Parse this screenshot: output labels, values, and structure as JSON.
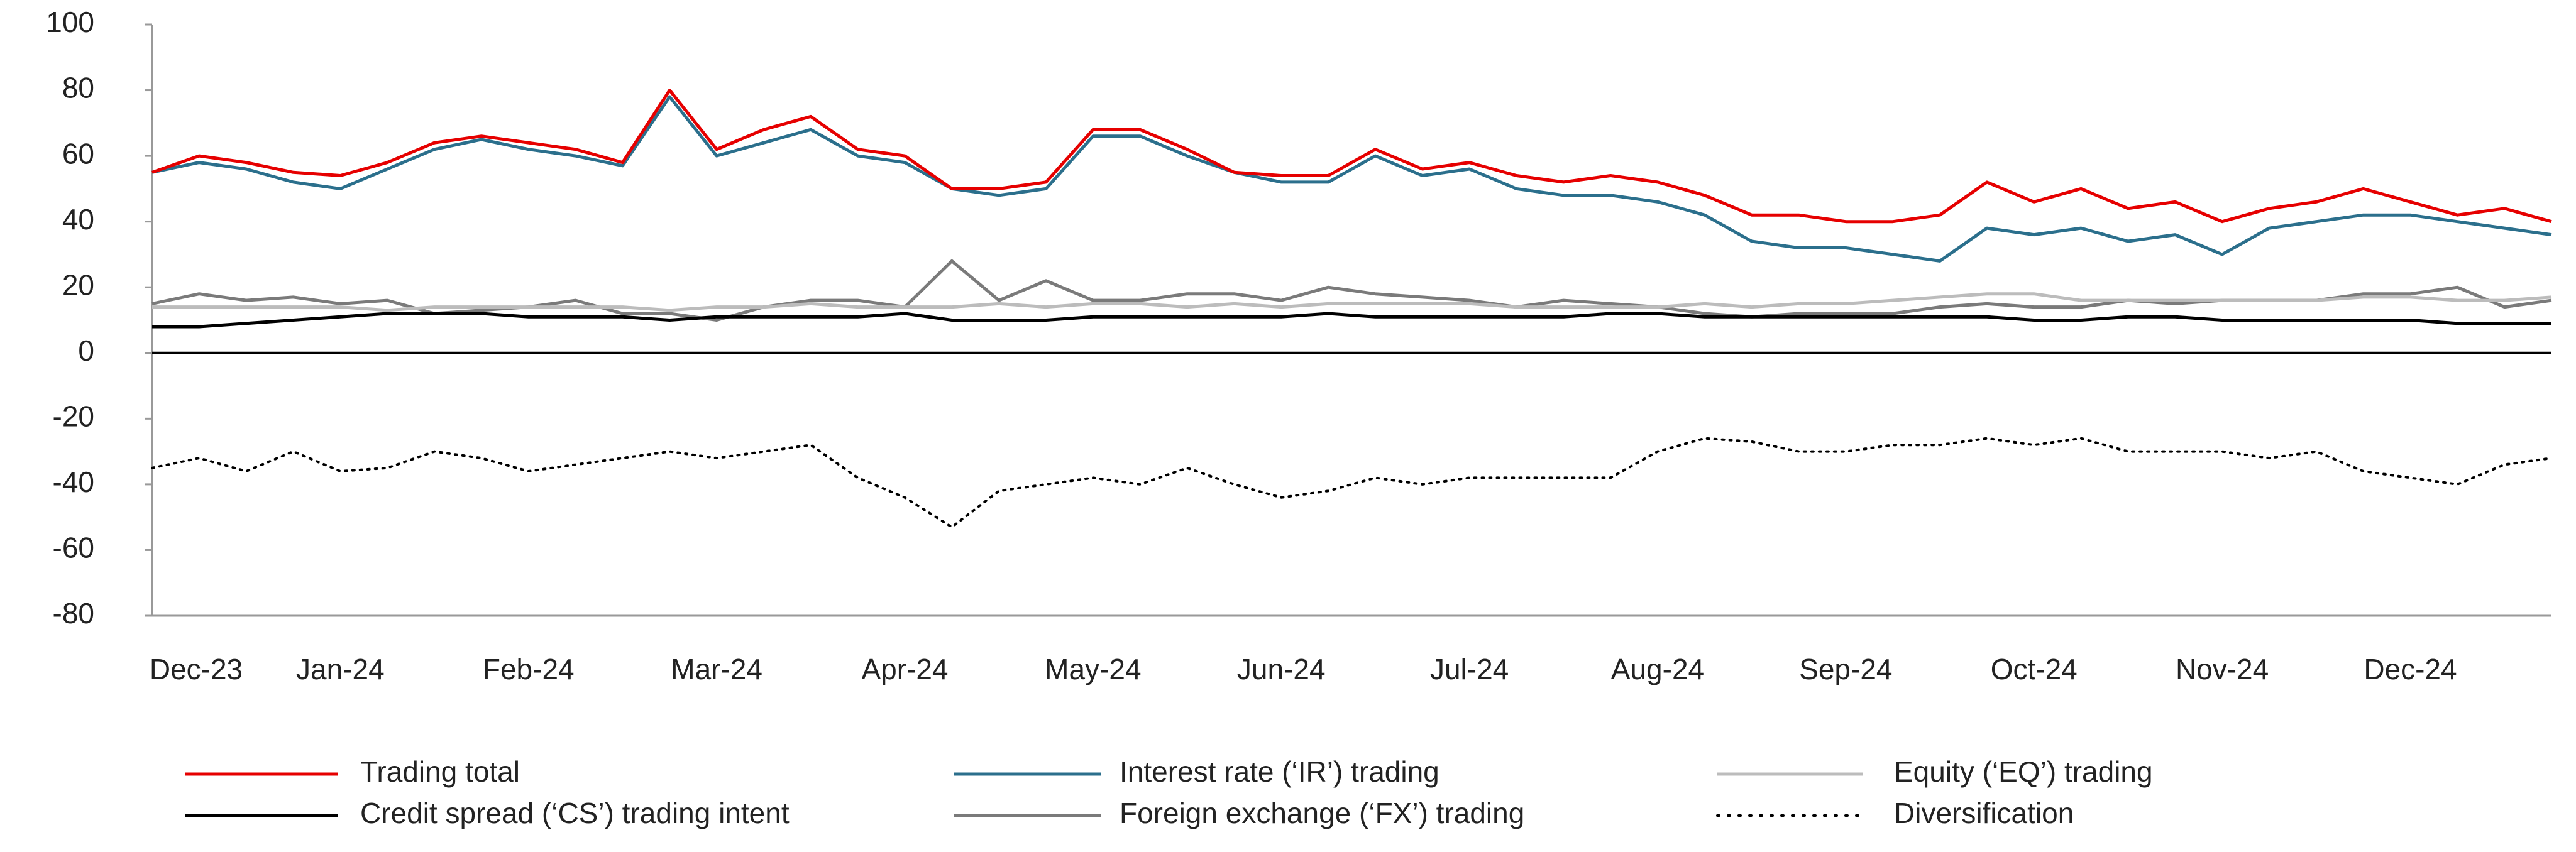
{
  "chart_data": {
    "type": "line",
    "categories": [
      "Dec-23",
      null,
      null,
      null,
      "Jan-24",
      null,
      null,
      null,
      "Feb-24",
      null,
      null,
      null,
      "Mar-24",
      null,
      null,
      null,
      "Apr-24",
      null,
      null,
      null,
      "May-24",
      null,
      null,
      null,
      "Jun-24",
      null,
      null,
      null,
      "Jul-24",
      null,
      null,
      null,
      "Aug-24",
      null,
      null,
      null,
      "Sep-24",
      null,
      null,
      null,
      "Oct-24",
      null,
      null,
      null,
      "Nov-24",
      null,
      null,
      null,
      "Dec-24",
      null,
      null,
      null
    ],
    "ylim": [
      -80,
      100
    ],
    "yticks": [
      -80,
      -60,
      -40,
      -20,
      0,
      20,
      40,
      60,
      80,
      100
    ],
    "series": [
      {
        "name": "Trading total",
        "color": "#e60000",
        "dash": "solid",
        "values": [
          55,
          60,
          58,
          55,
          54,
          58,
          64,
          66,
          64,
          62,
          58,
          80,
          62,
          68,
          72,
          62,
          60,
          50,
          50,
          52,
          68,
          68,
          62,
          55,
          54,
          54,
          62,
          56,
          58,
          54,
          52,
          54,
          52,
          48,
          42,
          42,
          40,
          40,
          42,
          52,
          46,
          50,
          44,
          46,
          40,
          44,
          46,
          50,
          46,
          42,
          44,
          40
        ]
      },
      {
        "name": "Interest rate (‘IR’) trading",
        "color": "#2b6f8c",
        "dash": "solid",
        "values": [
          55,
          58,
          56,
          52,
          50,
          56,
          62,
          65,
          62,
          60,
          57,
          78,
          60,
          64,
          68,
          60,
          58,
          50,
          48,
          50,
          66,
          66,
          60,
          55,
          52,
          52,
          60,
          54,
          56,
          50,
          48,
          48,
          46,
          42,
          34,
          32,
          32,
          30,
          28,
          38,
          36,
          38,
          34,
          36,
          30,
          38,
          40,
          42,
          42,
          40,
          38,
          36
        ]
      },
      {
        "name": "Equity (‘EQ’) trading",
        "color": "#bcbcbc",
        "dash": "solid",
        "values": [
          14,
          14,
          14,
          14,
          14,
          13,
          14,
          14,
          14,
          14,
          14,
          13,
          14,
          14,
          15,
          14,
          14,
          14,
          15,
          14,
          15,
          15,
          14,
          15,
          14,
          15,
          15,
          15,
          15,
          14,
          14,
          14,
          14,
          15,
          14,
          15,
          15,
          16,
          17,
          18,
          18,
          16,
          16,
          16,
          16,
          16,
          16,
          17,
          17,
          16,
          16,
          17
        ]
      },
      {
        "name": "Credit spread (‘CS’) trading intent",
        "color": "#000000",
        "dash": "solid",
        "values": [
          8,
          8,
          9,
          10,
          11,
          12,
          12,
          12,
          11,
          11,
          11,
          10,
          11,
          11,
          11,
          11,
          12,
          10,
          10,
          10,
          11,
          11,
          11,
          11,
          11,
          12,
          11,
          11,
          11,
          11,
          11,
          12,
          12,
          11,
          11,
          11,
          11,
          11,
          11,
          11,
          10,
          10,
          11,
          11,
          10,
          10,
          10,
          10,
          10,
          9,
          9,
          9
        ]
      },
      {
        "name": "Foreign exchange (‘FX’) trading",
        "color": "#7a7a7a",
        "dash": "solid",
        "values": [
          15,
          18,
          16,
          17,
          15,
          16,
          12,
          13,
          14,
          16,
          12,
          12,
          10,
          14,
          16,
          16,
          14,
          28,
          16,
          22,
          16,
          16,
          18,
          18,
          16,
          20,
          18,
          17,
          16,
          14,
          16,
          15,
          14,
          12,
          11,
          12,
          12,
          12,
          14,
          15,
          14,
          14,
          16,
          15,
          16,
          16,
          16,
          18,
          18,
          20,
          14,
          16
        ]
      },
      {
        "name": "Diversification",
        "color": "#000000",
        "dash": "dotted",
        "values": [
          -35,
          -32,
          -36,
          -30,
          -36,
          -35,
          -30,
          -32,
          -36,
          -34,
          -32,
          -30,
          -32,
          -30,
          -28,
          -38,
          -44,
          -53,
          -42,
          -40,
          -38,
          -40,
          -35,
          -40,
          -44,
          -42,
          -38,
          -40,
          -38,
          -38,
          -38,
          -38,
          -30,
          -26,
          -27,
          -30,
          -30,
          -28,
          -28,
          -26,
          -28,
          -26,
          -30,
          -30,
          -30,
          -32,
          -30,
          -36,
          -38,
          -40,
          -34,
          -32
        ]
      }
    ]
  }
}
